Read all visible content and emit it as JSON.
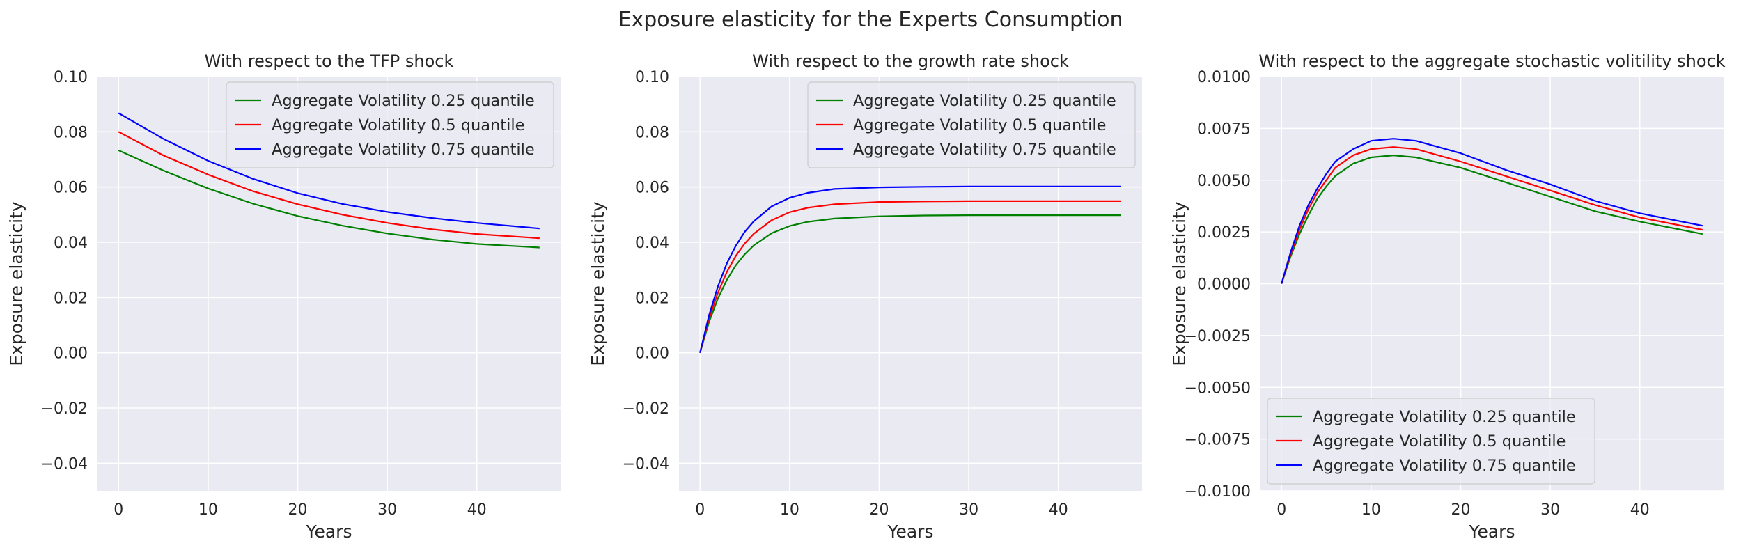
{
  "figure": {
    "title": "Exposure elasticity for the Experts Consumption",
    "colors": {
      "axes_bg": "#eaeaf2",
      "grid": "#ffffff",
      "legend_bg": "#eaeaf2",
      "legend_border": "#cccccc",
      "series": [
        "#008000",
        "#ff0000",
        "#0000ff"
      ]
    }
  },
  "chart_data": [
    {
      "type": "line",
      "title": "With respect to the TFP shock",
      "xlabel": "Years",
      "ylabel": "Exposure elasticity",
      "xlim": [
        -2.35,
        49.35
      ],
      "ylim": [
        -0.05,
        0.1
      ],
      "xticks": [
        0,
        10,
        20,
        30,
        40
      ],
      "xtick_labels": [
        "0",
        "10",
        "20",
        "30",
        "40"
      ],
      "yticks": [
        -0.04,
        -0.02,
        0.0,
        0.02,
        0.04,
        0.06,
        0.08,
        0.1
      ],
      "ytick_labels": [
        "−0.04",
        "−0.02",
        "0.00",
        "0.02",
        "0.04",
        "0.06",
        "0.08",
        "0.10"
      ],
      "grid": true,
      "legend_position": "upper right",
      "x": [
        0,
        5,
        10,
        15,
        20,
        25,
        30,
        35,
        40,
        47
      ],
      "series": [
        {
          "name": "Aggregate Volatility 0.25 quantile",
          "color": "#008000",
          "values": [
            0.0733,
            0.066,
            0.0595,
            0.054,
            0.0495,
            0.046,
            0.0432,
            0.041,
            0.0394,
            0.0381
          ]
        },
        {
          "name": "Aggregate Volatility 0.5 quantile",
          "color": "#ff0000",
          "values": [
            0.08,
            0.0715,
            0.0645,
            0.0585,
            0.0538,
            0.05,
            0.047,
            0.0447,
            0.043,
            0.0415
          ]
        },
        {
          "name": "Aggregate Volatility 0.75 quantile",
          "color": "#0000ff",
          "values": [
            0.0868,
            0.0775,
            0.0695,
            0.063,
            0.0578,
            0.0539,
            0.051,
            0.0488,
            0.047,
            0.045
          ]
        }
      ]
    },
    {
      "type": "line",
      "title": "With respect to the growth rate shock",
      "xlabel": "Years",
      "ylabel": "Exposure elasticity",
      "xlim": [
        -2.35,
        49.35
      ],
      "ylim": [
        -0.05,
        0.1
      ],
      "xticks": [
        0,
        10,
        20,
        30,
        40
      ],
      "xtick_labels": [
        "0",
        "10",
        "20",
        "30",
        "40"
      ],
      "yticks": [
        -0.04,
        -0.02,
        0.0,
        0.02,
        0.04,
        0.06,
        0.08,
        0.1
      ],
      "ytick_labels": [
        "−0.04",
        "−0.02",
        "0.00",
        "0.02",
        "0.04",
        "0.06",
        "0.08",
        "0.10"
      ],
      "grid": true,
      "legend_position": "upper right",
      "x": [
        0,
        1,
        2,
        3,
        4,
        5,
        6,
        8,
        10,
        12,
        15,
        20,
        25,
        30,
        40,
        47
      ],
      "series": [
        {
          "name": "Aggregate Volatility 0.25 quantile",
          "color": "#008000",
          "values": [
            0.0,
            0.0111,
            0.0197,
            0.0264,
            0.0317,
            0.0357,
            0.0389,
            0.0433,
            0.0459,
            0.0474,
            0.0486,
            0.0494,
            0.0497,
            0.0498,
            0.0498,
            0.0498
          ]
        },
        {
          "name": "Aggregate Volatility 0.5 quantile",
          "color": "#ff0000",
          "values": [
            0.0,
            0.0123,
            0.0218,
            0.0293,
            0.0351,
            0.0396,
            0.0431,
            0.048,
            0.0509,
            0.0525,
            0.0538,
            0.0546,
            0.0548,
            0.0549,
            0.0549,
            0.0549
          ]
        },
        {
          "name": "Aggregate Volatility 0.75 quantile",
          "color": "#0000ff",
          "values": [
            0.0,
            0.0135,
            0.0241,
            0.0324,
            0.0388,
            0.0438,
            0.0476,
            0.053,
            0.0561,
            0.0579,
            0.0593,
            0.0599,
            0.0601,
            0.0602,
            0.0602,
            0.0602
          ]
        }
      ]
    },
    {
      "type": "line",
      "title": "With respect to the aggregate stochastic volitility shock",
      "xlabel": "Years",
      "ylabel": "Exposure elasticity",
      "xlim": [
        -2.35,
        49.35
      ],
      "ylim": [
        -0.01,
        0.01
      ],
      "xticks": [
        0,
        10,
        20,
        30,
        40
      ],
      "xtick_labels": [
        "0",
        "10",
        "20",
        "30",
        "40"
      ],
      "yticks": [
        -0.01,
        -0.0075,
        -0.005,
        -0.0025,
        0.0,
        0.0025,
        0.005,
        0.0075,
        0.01
      ],
      "ytick_labels": [
        "−0.0100",
        "−0.0075",
        "−0.0050",
        "−0.0025",
        "0.0000",
        "0.0025",
        "0.0050",
        "0.0075",
        "0.0100"
      ],
      "grid": true,
      "legend_position": "lower left",
      "x": [
        0,
        1,
        2,
        3,
        4,
        5,
        6,
        8,
        10,
        12.5,
        15,
        20,
        25,
        30,
        35,
        40,
        47
      ],
      "series": [
        {
          "name": "Aggregate Volatility 0.25 quantile",
          "color": "#008000",
          "values": [
            0.0,
            0.0013,
            0.0024,
            0.0033,
            0.0041,
            0.0047,
            0.0052,
            0.0058,
            0.0061,
            0.0062,
            0.0061,
            0.0056,
            0.0049,
            0.0042,
            0.0035,
            0.003,
            0.0024
          ]
        },
        {
          "name": "Aggregate Volatility 0.5 quantile",
          "color": "#ff0000",
          "values": [
            0.0,
            0.0014,
            0.0026,
            0.0036,
            0.0044,
            0.005,
            0.0056,
            0.0062,
            0.0065,
            0.0066,
            0.0065,
            0.0059,
            0.0052,
            0.0045,
            0.0038,
            0.0032,
            0.0026
          ]
        },
        {
          "name": "Aggregate Volatility 0.75 quantile",
          "color": "#0000ff",
          "values": [
            0.0,
            0.0015,
            0.0028,
            0.0038,
            0.0046,
            0.0053,
            0.0059,
            0.0065,
            0.0069,
            0.007,
            0.0069,
            0.0063,
            0.0055,
            0.0048,
            0.004,
            0.0034,
            0.0028
          ]
        }
      ]
    }
  ]
}
